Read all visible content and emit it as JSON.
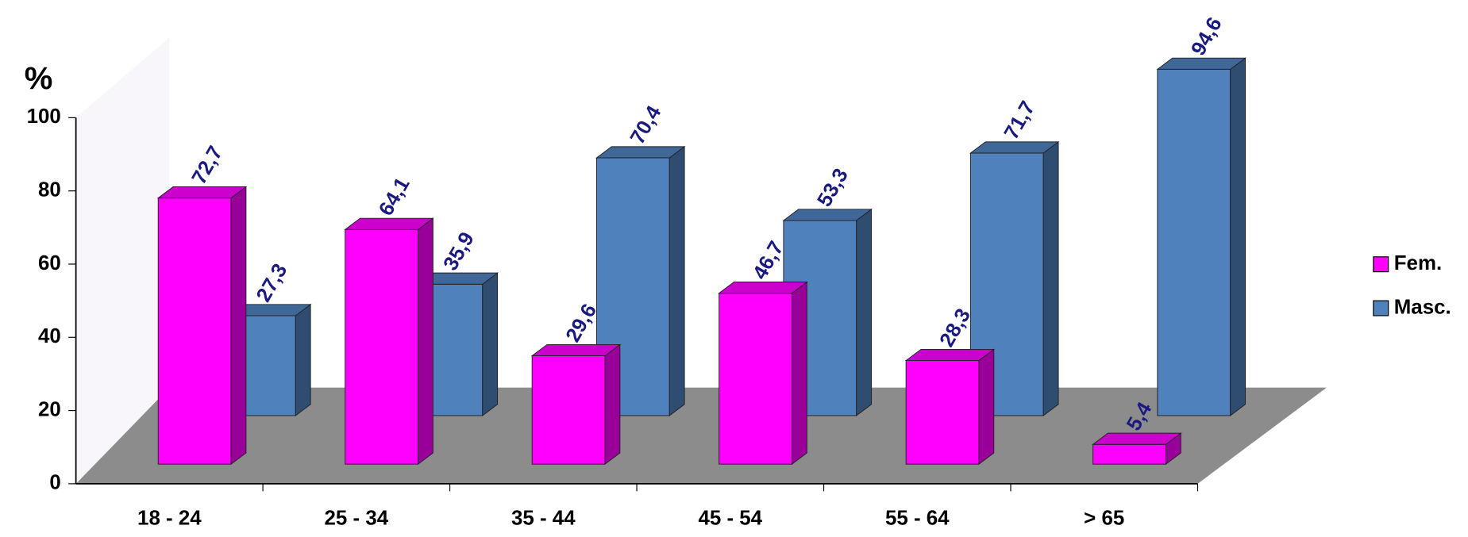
{
  "chart_data": {
    "type": "bar3d",
    "y_label": "%",
    "categories": [
      "18 - 24",
      "25 - 34",
      "35 - 44",
      "45 - 54",
      "55 - 64",
      "> 65"
    ],
    "series": [
      {
        "name": "Fem.",
        "color": "#ff00ff",
        "values": [
          72.7,
          64.1,
          29.6,
          46.7,
          28.3,
          5.4
        ],
        "value_labels": [
          "72,7",
          "64,1",
          "29,6",
          "46,7",
          "28,3",
          "5,4"
        ]
      },
      {
        "name": "Masc.",
        "color": "#4f81bd",
        "values": [
          27.3,
          35.9,
          70.4,
          53.3,
          71.7,
          94.6
        ],
        "value_labels": [
          "27,3",
          "35,9",
          "70,4",
          "53,3",
          "71,7",
          "94,6"
        ]
      }
    ],
    "ylim": [
      0,
      100
    ],
    "yticks": [
      0,
      20,
      40,
      60,
      80,
      100
    ],
    "legend": "right"
  }
}
